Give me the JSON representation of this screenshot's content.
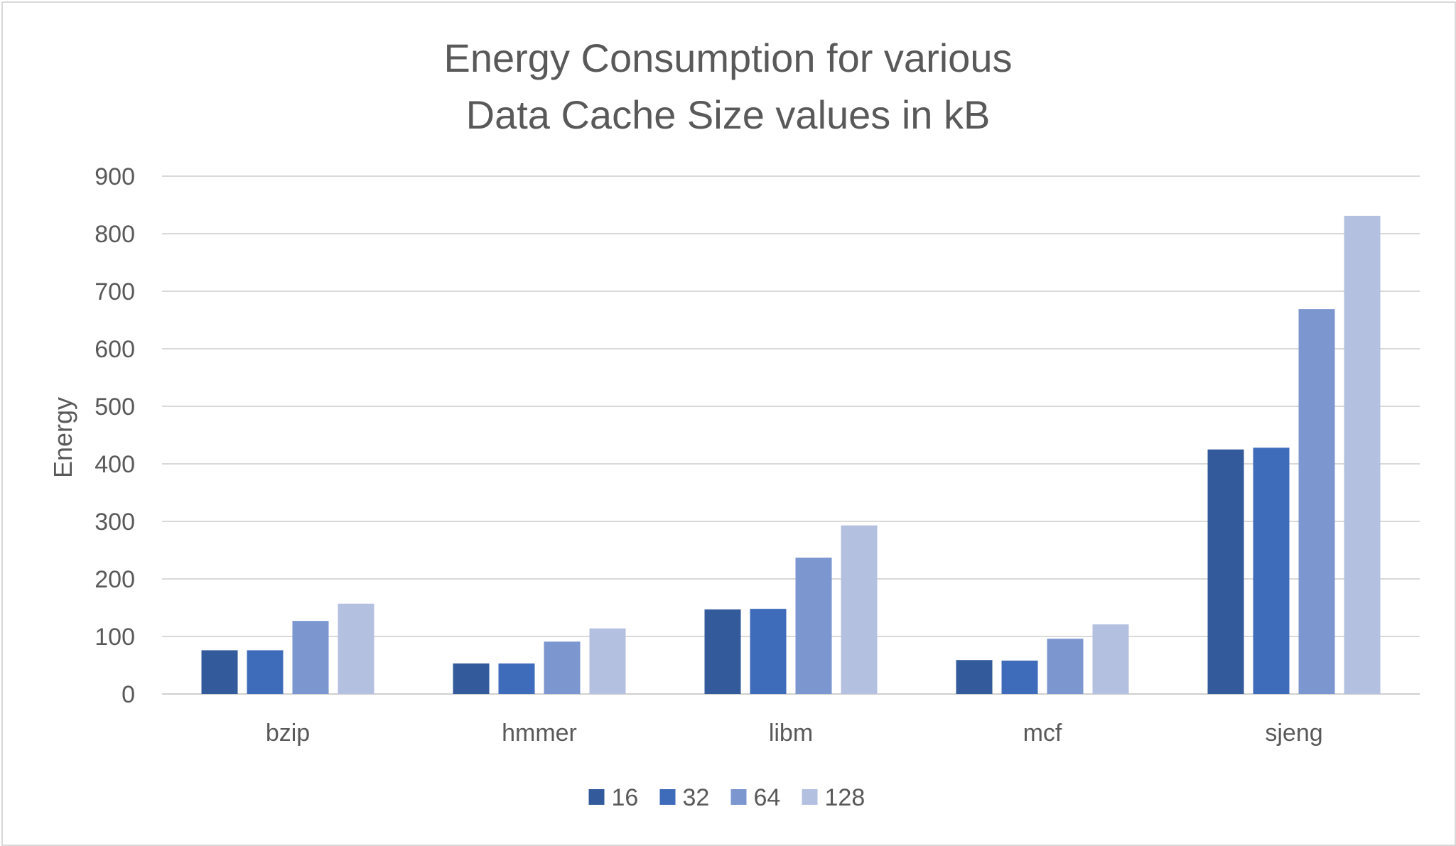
{
  "chart_data": {
    "type": "bar",
    "title_lines": [
      "Energy Consumption for various",
      "Data Cache Size values in kB"
    ],
    "xlabel": "",
    "ylabel": "Energy",
    "categories": [
      "bzip",
      "hmmer",
      "libm",
      "mcf",
      "sjeng"
    ],
    "ylim": [
      0,
      900
    ],
    "yticks": [
      "0",
      "100",
      "200",
      "300",
      "400",
      "500",
      "600",
      "700",
      "800",
      "900"
    ],
    "grid": true,
    "legend_position": "bottom",
    "series": [
      {
        "name": "16",
        "color": "#335a9a",
        "values": [
          76,
          53,
          147,
          59,
          425
        ]
      },
      {
        "name": "32",
        "color": "#3f6cba",
        "values": [
          76,
          53,
          148,
          58,
          428
        ]
      },
      {
        "name": "64",
        "color": "#7c96d0",
        "values": [
          127,
          91,
          237,
          96,
          669
        ]
      },
      {
        "name": "128",
        "color": "#b4c0e0",
        "values": [
          157,
          114,
          293,
          121,
          831
        ]
      }
    ]
  }
}
